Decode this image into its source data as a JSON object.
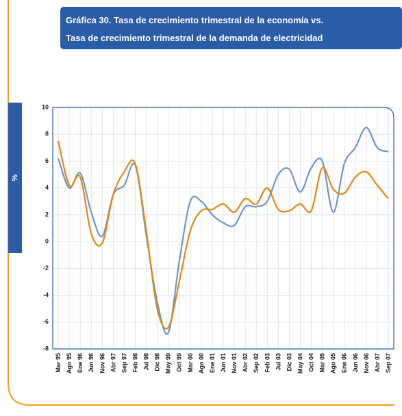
{
  "chart_data": {
    "type": "line",
    "title": [
      "Gráfica 30. Tasa de crecimiento trimestral de la economía vs.",
      "Tasa de crecimiento trimestral de la demanda de electricidad"
    ],
    "y_label": "%",
    "categories": [
      "Mar 95",
      "Ago 95",
      "Ene 96",
      "Jun 96",
      "Nov 96",
      "Abr 97",
      "Sep 97",
      "Feb 98",
      "Jul 98",
      "Dic 98",
      "May 99",
      "Oct 99",
      "Mar 00",
      "Ago 00",
      "Ene 01",
      "Jun 01",
      "Nov 01",
      "Abr 02",
      "Sep 02",
      "Feb 03",
      "Jul 03",
      "Dic 03",
      "May 04",
      "Oct 04",
      "Mar 05",
      "Ago 05",
      "Ene 06",
      "Jun 06",
      "Nov 06",
      "Abr 07",
      "Sep 07"
    ],
    "series": [
      {
        "color": "#6b96cc",
        "values": [
          6.2,
          4.0,
          5.1,
          2.2,
          0.4,
          3.5,
          4.2,
          5.7,
          0.5,
          -4.5,
          -6.8,
          -1.5,
          3.0,
          3.0,
          2.0,
          1.4,
          1.2,
          2.6,
          2.6,
          3.0,
          5.0,
          5.4,
          3.7,
          5.5,
          6.0,
          2.2,
          5.8,
          7.0,
          8.5,
          7.0,
          6.7
        ]
      },
      {
        "color": "#e8850f",
        "values": [
          7.5,
          4.2,
          4.8,
          0.6,
          -0.1,
          3.5,
          5.2,
          5.8,
          0.8,
          -5.0,
          -6.4,
          -3.0,
          0.8,
          2.3,
          2.4,
          2.8,
          2.2,
          3.2,
          2.8,
          4.0,
          2.4,
          2.3,
          2.8,
          2.3,
          5.5,
          3.9,
          3.6,
          4.8,
          5.2,
          4.2,
          3.2
        ]
      }
    ],
    "ylim": [
      -8,
      10
    ],
    "yticks": [
      -8,
      -6,
      -4,
      -2,
      0,
      2,
      4,
      6,
      8,
      10
    ],
    "grid": true
  }
}
